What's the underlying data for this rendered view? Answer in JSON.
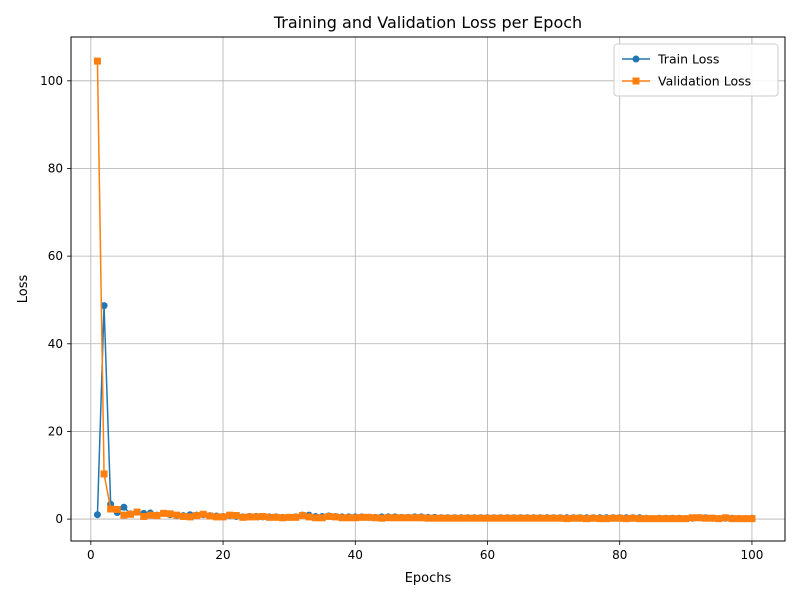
{
  "chart_data": {
    "type": "line",
    "title": "Training and Validation Loss per Epoch",
    "xlabel": "Epochs",
    "ylabel": "Loss",
    "xlim": [
      -3,
      105
    ],
    "ylim": [
      -5,
      110
    ],
    "xticks": [
      0,
      20,
      40,
      60,
      80,
      100
    ],
    "yticks": [
      0,
      20,
      40,
      60,
      80,
      100
    ],
    "grid": true,
    "legend_position": "top-right",
    "x": [
      1,
      2,
      3,
      4,
      5,
      6,
      7,
      8,
      9,
      10,
      11,
      12,
      13,
      14,
      15,
      16,
      17,
      18,
      19,
      20,
      21,
      22,
      23,
      24,
      25,
      26,
      27,
      28,
      29,
      30,
      31,
      32,
      33,
      34,
      35,
      36,
      37,
      38,
      39,
      40,
      41,
      42,
      43,
      44,
      45,
      46,
      47,
      48,
      49,
      50,
      51,
      52,
      53,
      54,
      55,
      56,
      57,
      58,
      59,
      60,
      61,
      62,
      63,
      64,
      65,
      66,
      67,
      68,
      69,
      70,
      71,
      72,
      73,
      74,
      75,
      76,
      77,
      78,
      79,
      80,
      81,
      82,
      83,
      84,
      85,
      86,
      87,
      88,
      89,
      90,
      91,
      92,
      93,
      94,
      95,
      96,
      97,
      98,
      99,
      100
    ],
    "series": [
      {
        "name": "Train Loss",
        "color": "#1f77b4",
        "marker": "circle",
        "values": [
          1.0,
          48.7,
          3.4,
          1.5,
          2.7,
          1.2,
          1.6,
          1.3,
          1.4,
          0.9,
          1.3,
          1.0,
          0.8,
          0.8,
          1.0,
          0.9,
          1.0,
          0.8,
          0.7,
          0.6,
          0.8,
          0.6,
          0.5,
          0.6,
          0.6,
          0.5,
          0.5,
          0.5,
          0.4,
          0.4,
          0.5,
          0.9,
          0.9,
          0.6,
          0.6,
          0.7,
          0.6,
          0.5,
          0.5,
          0.5,
          0.5,
          0.4,
          0.4,
          0.5,
          0.5,
          0.5,
          0.4,
          0.4,
          0.5,
          0.5,
          0.4,
          0.4,
          0.3,
          0.3,
          0.3,
          0.3,
          0.3,
          0.3,
          0.3,
          0.3,
          0.3,
          0.3,
          0.3,
          0.3,
          0.3,
          0.3,
          0.3,
          0.3,
          0.3,
          0.3,
          0.3,
          0.3,
          0.3,
          0.3,
          0.3,
          0.3,
          0.3,
          0.3,
          0.3,
          0.3,
          0.3,
          0.3,
          0.3,
          0.2,
          0.1,
          0.2,
          0.2,
          0.2,
          0.2,
          0.1,
          0.2,
          0.3,
          0.3,
          0.2,
          0.1,
          0.2,
          0.2,
          0.1,
          0.1,
          0.2
        ]
      },
      {
        "name": "Validation Loss",
        "color": "#ff7f0e",
        "marker": "square",
        "values": [
          104.5,
          10.3,
          2.3,
          2.2,
          0.9,
          1.1,
          1.6,
          0.6,
          0.9,
          0.8,
          1.3,
          1.2,
          0.9,
          0.6,
          0.5,
          0.8,
          1.1,
          0.7,
          0.5,
          0.5,
          0.9,
          0.8,
          0.4,
          0.5,
          0.5,
          0.6,
          0.4,
          0.4,
          0.3,
          0.4,
          0.4,
          0.8,
          0.5,
          0.3,
          0.3,
          0.6,
          0.5,
          0.3,
          0.3,
          0.3,
          0.4,
          0.4,
          0.3,
          0.2,
          0.3,
          0.3,
          0.3,
          0.3,
          0.3,
          0.3,
          0.2,
          0.2,
          0.2,
          0.2,
          0.2,
          0.2,
          0.2,
          0.2,
          0.2,
          0.2,
          0.2,
          0.2,
          0.2,
          0.2,
          0.2,
          0.2,
          0.2,
          0.2,
          0.2,
          0.2,
          0.2,
          0.1,
          0.2,
          0.2,
          0.1,
          0.2,
          0.1,
          0.1,
          0.2,
          0.2,
          0.1,
          0.2,
          0.1,
          0.1,
          0.1,
          0.1,
          0.1,
          0.1,
          0.1,
          0.1,
          0.3,
          0.3,
          0.2,
          0.2,
          0.1,
          0.3,
          0.1,
          0.1,
          0.1,
          0.1
        ]
      }
    ]
  }
}
